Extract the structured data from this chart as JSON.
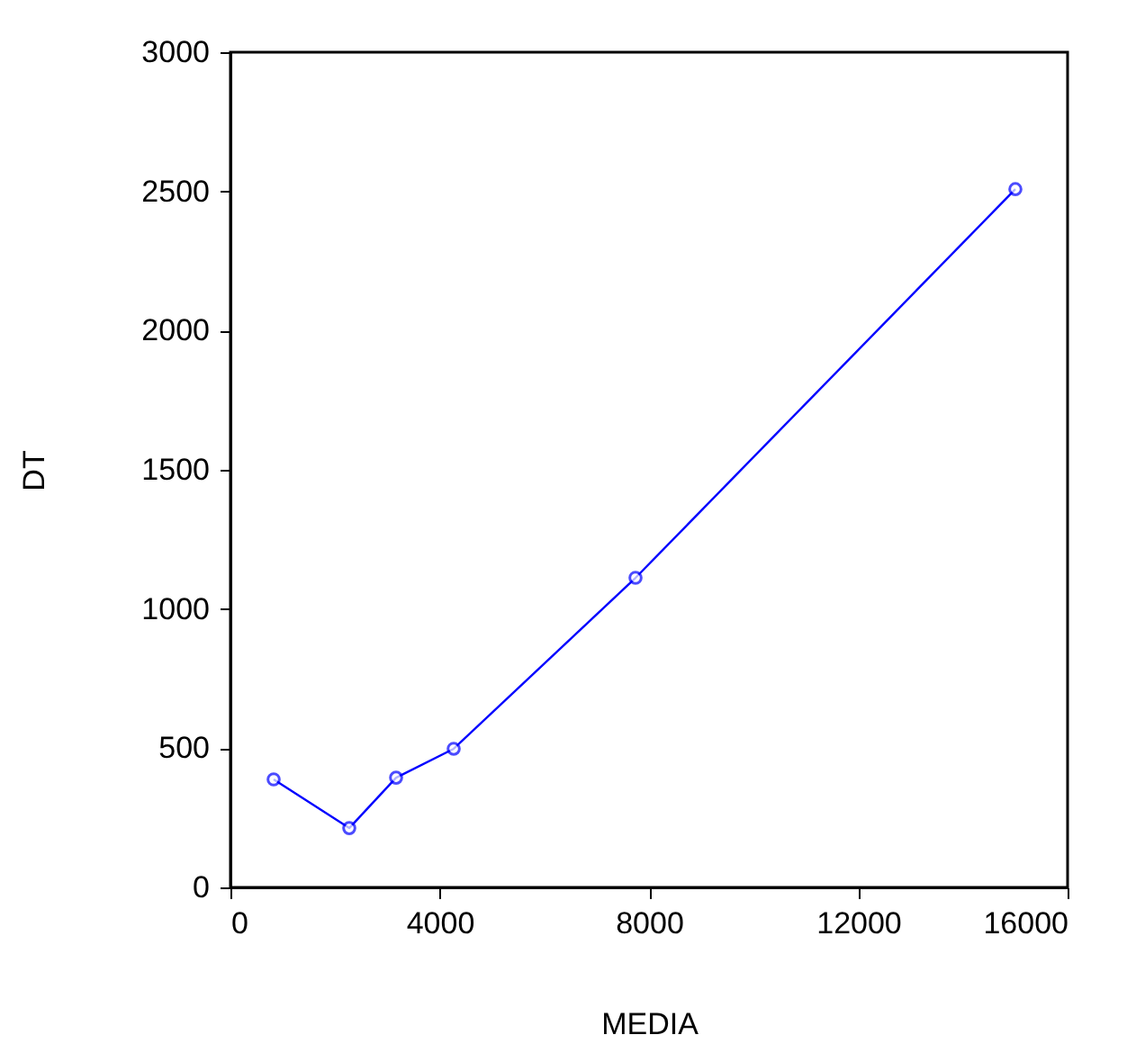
{
  "chart_data": {
    "type": "line",
    "xlabel": "MEDIA",
    "ylabel": "DT",
    "x": [
      826,
      2271,
      3166,
      4267,
      7742,
      15002
    ],
    "series": [
      {
        "color": "#0000ff",
        "values": [
          388,
          213,
          394,
          498,
          1112,
          2508
        ]
      }
    ],
    "xlim": [
      0,
      16000
    ],
    "xticks": [
      0,
      4000,
      8000,
      12000,
      16000
    ],
    "ylim": [
      0,
      3000
    ],
    "yticks": [
      0,
      500,
      1000,
      1500,
      2000,
      2500,
      3000
    ],
    "grid": false,
    "legend": false,
    "marker": "circle",
    "line_style": "solid"
  }
}
